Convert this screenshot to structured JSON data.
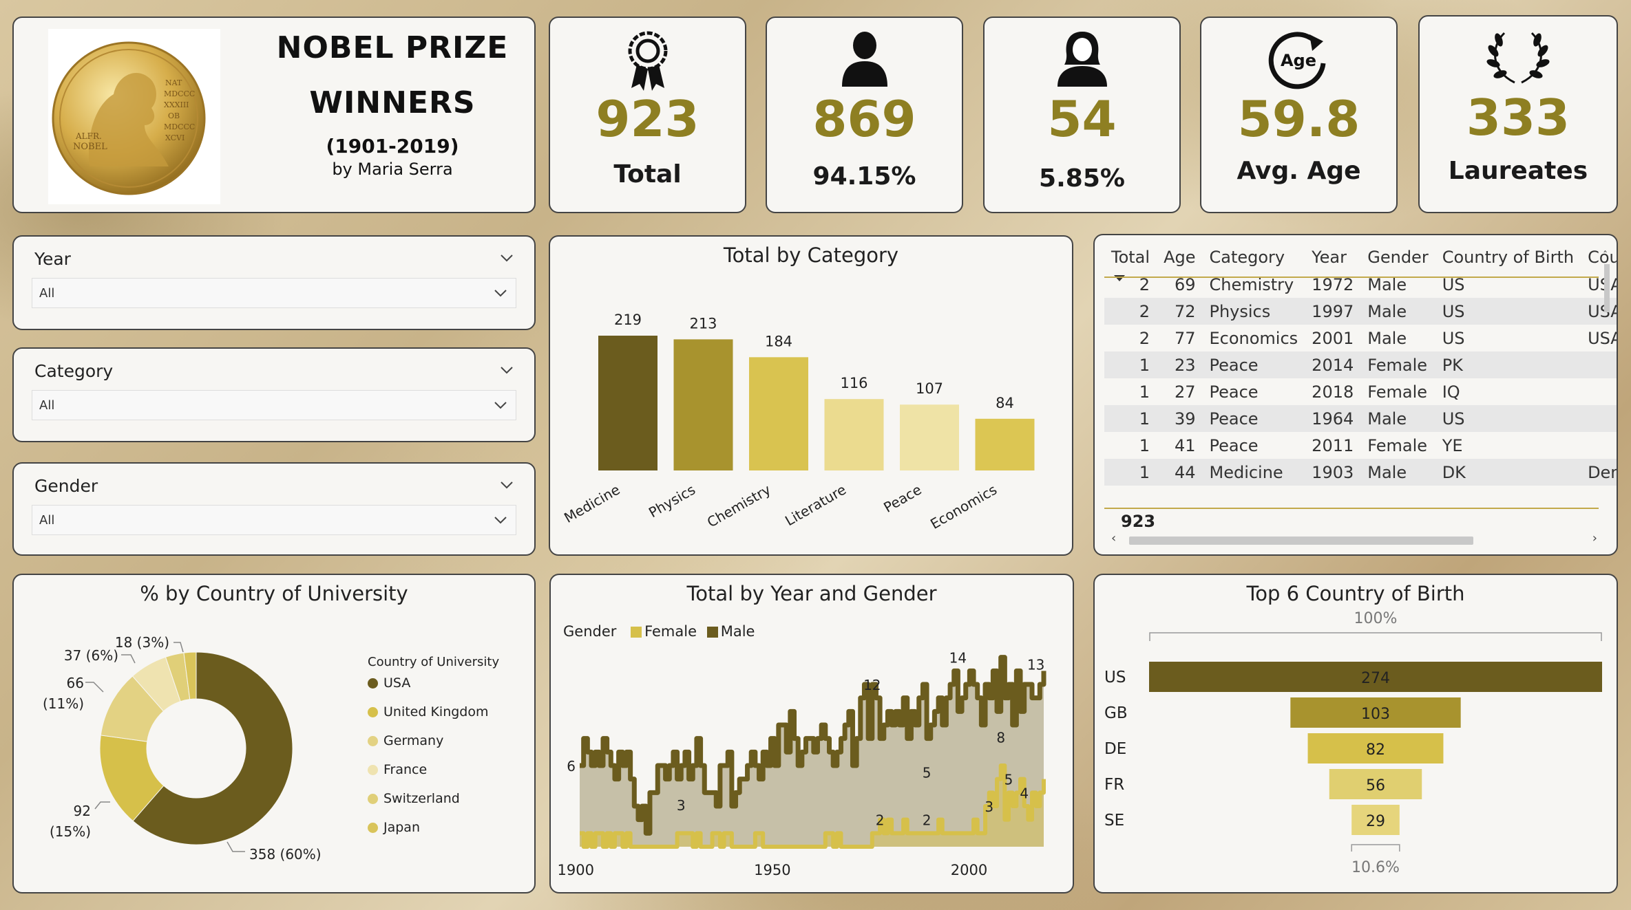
{
  "header": {
    "title_line1": "NOBEL PRIZE",
    "title_line2": "WINNERS",
    "years": "(1901-2019)",
    "author": "by Maria Serra",
    "medal_text": [
      "ALFR.",
      "NOBEL",
      "NAT",
      "MDCCC",
      "XXXIII",
      "OB",
      "MDCCC",
      "XCVI"
    ]
  },
  "kpis": [
    {
      "icon": "award-ribbon-icon",
      "value": "923",
      "label": "Total"
    },
    {
      "icon": "male-person-icon",
      "value": "869",
      "label": "94.15%"
    },
    {
      "icon": "female-person-icon",
      "value": "54",
      "label": "5.85%"
    },
    {
      "icon": "age-cycle-icon",
      "icon_text": "Age",
      "value": "59.8",
      "label": "Avg. Age"
    },
    {
      "icon": "laurel-wreath-icon",
      "value": "333",
      "label": "Laureates"
    }
  ],
  "slicers": [
    {
      "label": "Year",
      "value": "All"
    },
    {
      "label": "Category",
      "value": "All"
    },
    {
      "label": "Gender",
      "value": "All"
    }
  ],
  "colors": {
    "dark": "#6b5c1e",
    "mid": "#a8932e",
    "gold": "#d6c04a",
    "light": "#e6d57c",
    "pale": "#efe3a6",
    "male_area": "#c2b594"
  },
  "table": {
    "columns": [
      "Total",
      "Age",
      "Category",
      "Year",
      "Gender",
      "Country of Birth",
      "Count"
    ],
    "rows": [
      [
        "2",
        "69",
        "Chemistry",
        "1972",
        "Male",
        "US",
        "USA"
      ],
      [
        "2",
        "72",
        "Physics",
        "1997",
        "Male",
        "US",
        "USA"
      ],
      [
        "2",
        "77",
        "Economics",
        "2001",
        "Male",
        "US",
        "USA"
      ],
      [
        "1",
        "23",
        "Peace",
        "2014",
        "Female",
        "PK",
        ""
      ],
      [
        "1",
        "27",
        "Peace",
        "2018",
        "Female",
        "IQ",
        ""
      ],
      [
        "1",
        "39",
        "Peace",
        "1964",
        "Male",
        "US",
        ""
      ],
      [
        "1",
        "41",
        "Peace",
        "2011",
        "Female",
        "YE",
        ""
      ],
      [
        "1",
        "44",
        "Medicine",
        "1903",
        "Male",
        "DK",
        "Denm"
      ]
    ],
    "total": "923"
  },
  "bar_chart": {
    "type": "bar",
    "title": "Total by Category",
    "categories": [
      "Medicine",
      "Physics",
      "Chemistry",
      "Literature",
      "Peace",
      "Economics"
    ],
    "values": [
      219,
      213,
      184,
      116,
      107,
      84
    ],
    "colors": [
      "#6b5c1e",
      "#a8932e",
      "#d9c350",
      "#ebdb8f",
      "#efe3a6",
      "#dcc653"
    ]
  },
  "donut_chart": {
    "type": "pie",
    "title": "% by Country of University",
    "legend_title": "Country of University",
    "categories": [
      "USA",
      "United Kingdom",
      "Germany",
      "France",
      "Switzerland",
      "Japan"
    ],
    "values": [
      358,
      92,
      66,
      37,
      18,
      12
    ],
    "colors": [
      "#6b5c1e",
      "#d6c04a",
      "#e3d283",
      "#efe3b0",
      "#e0cf78",
      "#d9c45a"
    ],
    "labels": [
      "358 (60%)",
      "92",
      "(15%)",
      "66",
      "(11%)",
      "37 (6%)",
      "18 (3%)"
    ]
  },
  "line_chart": {
    "type": "area",
    "title": "Total by Year and Gender",
    "legend_title": "Gender",
    "series": [
      {
        "name": "Female",
        "color": "#d6c04a"
      },
      {
        "name": "Male",
        "color": "#6b5c1e"
      }
    ],
    "x_ticks": [
      "1900",
      "1950",
      "2000"
    ],
    "x_range": [
      1901,
      2019
    ],
    "y_range": [
      0,
      15
    ],
    "male": [
      6,
      8,
      7,
      6,
      7,
      6,
      8,
      7,
      6,
      5,
      7,
      6,
      7,
      5,
      3,
      2,
      3,
      1,
      4,
      4,
      6,
      6,
      5,
      6,
      7,
      5,
      6,
      7,
      5,
      6,
      8,
      6,
      4,
      4,
      4,
      3,
      6,
      6,
      7,
      3,
      4,
      5,
      5,
      6,
      7,
      6,
      5,
      7,
      6,
      8,
      6,
      9,
      9,
      7,
      10,
      8,
      6,
      7,
      8,
      8,
      7,
      8,
      9,
      8,
      7,
      6,
      7,
      8,
      9,
      10,
      6,
      8,
      11,
      12,
      8,
      12,
      11,
      8,
      9,
      10,
      9,
      10,
      9,
      11,
      8,
      10,
      9,
      11,
      12,
      8,
      9,
      10,
      11,
      9,
      11,
      12,
      13,
      10,
      11,
      12,
      13,
      12,
      11,
      9,
      12,
      11,
      13,
      10,
      14,
      11,
      12,
      9,
      13,
      10,
      12,
      12,
      11,
      11,
      12,
      13
    ],
    "female": [
      1,
      0,
      1,
      0,
      1,
      1,
      0,
      1,
      0,
      1,
      1,
      0,
      1,
      0,
      0,
      0,
      0,
      0,
      0,
      0,
      0,
      0,
      0,
      0,
      0,
      1,
      1,
      1,
      1,
      0,
      1,
      0,
      0,
      0,
      1,
      1,
      0,
      1,
      1,
      0,
      0,
      0,
      0,
      0,
      0,
      1,
      1,
      0,
      0,
      0,
      0,
      0,
      0,
      0,
      0,
      0,
      0,
      0,
      0,
      0,
      0,
      0,
      0,
      1,
      1,
      0,
      1,
      0,
      0,
      0,
      0,
      0,
      0,
      0,
      0,
      1,
      1,
      2,
      1,
      2,
      1,
      1,
      1,
      2,
      1,
      1,
      1,
      1,
      1,
      1,
      1,
      1,
      2,
      1,
      1,
      1,
      1,
      1,
      1,
      1,
      1,
      2,
      1,
      1,
      3,
      4,
      3,
      5,
      6,
      2,
      4,
      3,
      4,
      5,
      3,
      2,
      4,
      3,
      4,
      5
    ],
    "annotations": [
      "6",
      "3",
      "12",
      "2",
      "2",
      "5",
      "14",
      "8",
      "3",
      "5",
      "4",
      "13"
    ]
  },
  "funnel_chart": {
    "type": "bar",
    "title": "Top 6 Country of Birth",
    "top_label": "100%",
    "bottom_label": "10.6%",
    "categories": [
      "US",
      "GB",
      "DE",
      "FR",
      "SE"
    ],
    "values": [
      274,
      103,
      82,
      56,
      29
    ],
    "colors": [
      "#6b5c1e",
      "#a8932e",
      "#d6c04a",
      "#e0cf70",
      "#e6d57c"
    ]
  }
}
